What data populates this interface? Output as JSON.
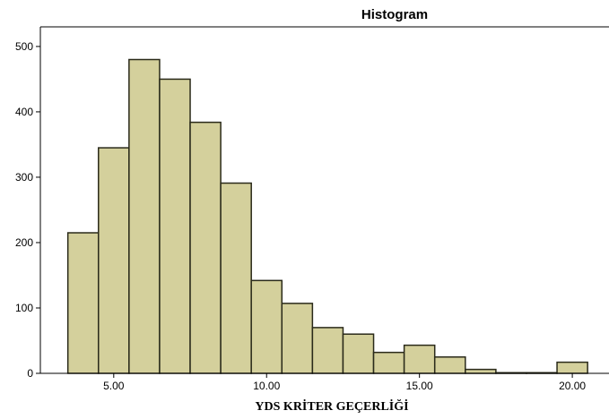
{
  "chart_data": {
    "type": "bar",
    "title": "Histogram",
    "xlabel": "YDS KRİTER GEÇERLİĞİ",
    "ylabel": "",
    "x_ticks": [
      5.0,
      10.0,
      15.0,
      20.0
    ],
    "x_tick_labels": [
      "5.00",
      "10.00",
      "15.00",
      "20.00"
    ],
    "y_ticks": [
      0,
      100,
      200,
      300,
      400,
      500
    ],
    "y_tick_labels": [
      "0",
      "100",
      "200",
      "300",
      "400",
      "500"
    ],
    "xlim": [
      2.6,
      21.2
    ],
    "ylim": [
      0,
      530
    ],
    "bin_edges": [
      3.5,
      4.5,
      5.5,
      6.5,
      7.5,
      8.5,
      9.5,
      10.5,
      11.5,
      12.5,
      13.5,
      14.5,
      15.5,
      16.5,
      17.5,
      18.5,
      19.5,
      20.5
    ],
    "values": [
      215,
      345,
      480,
      450,
      384,
      291,
      142,
      107,
      70,
      60,
      32,
      43,
      25,
      6,
      1,
      1,
      17
    ],
    "bar_color": "#d4d09c",
    "bar_edge_color": "#2a2a1a",
    "plot_background": "#ffffff",
    "grid": false
  }
}
